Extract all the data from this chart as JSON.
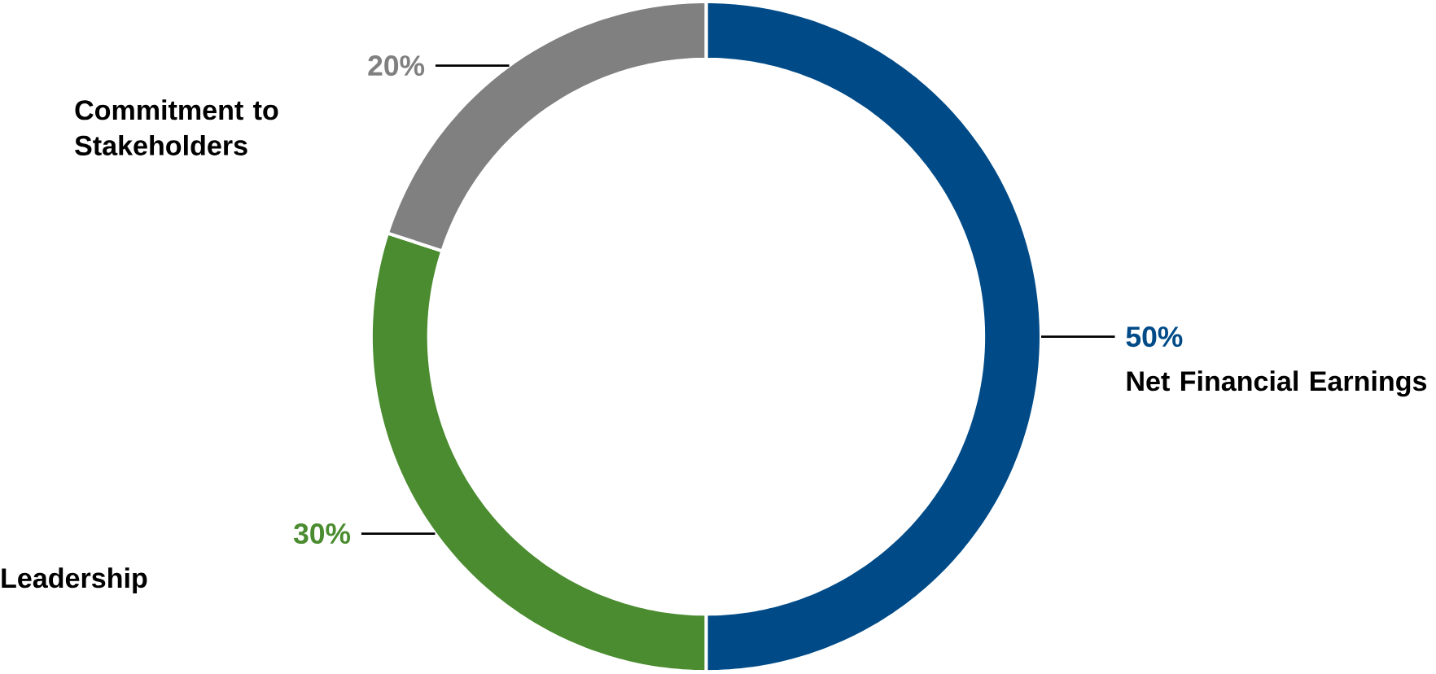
{
  "chart_data": {
    "type": "donut",
    "categories": [
      "Net Financial Earnings",
      "Leadership",
      "Commitment to Stakeholders"
    ],
    "values": [
      50,
      30,
      20
    ],
    "colors": [
      "#004b87",
      "#4a8c2f",
      "#808080"
    ],
    "value_labels": [
      "50%",
      "30%",
      "20%"
    ]
  }
}
